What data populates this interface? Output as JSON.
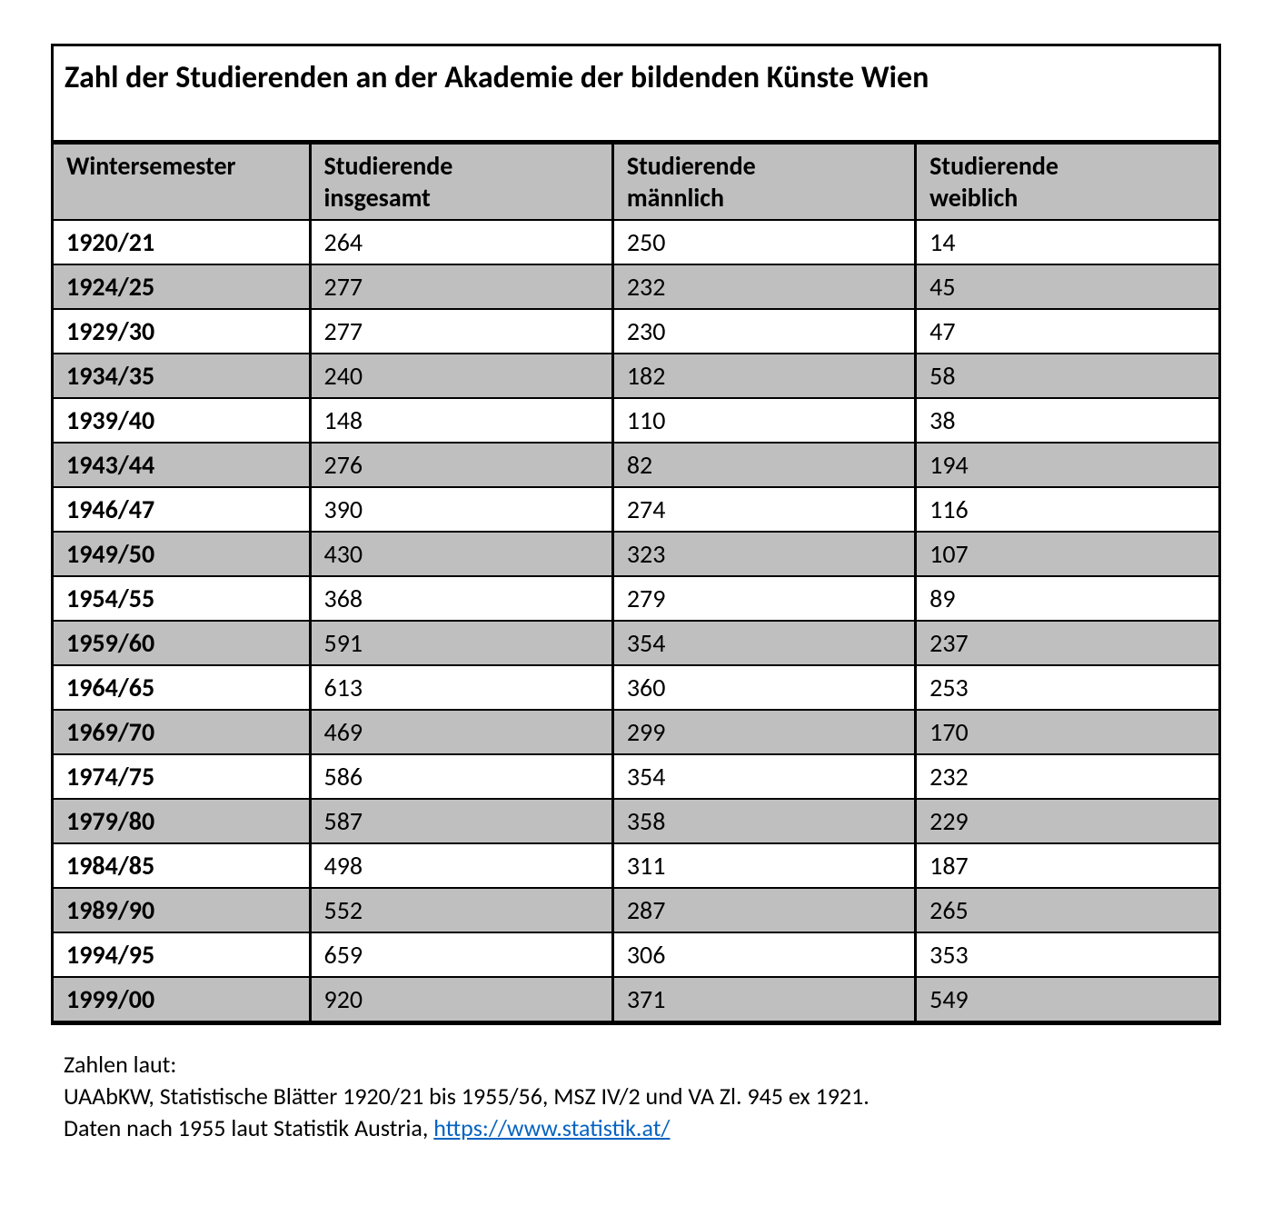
{
  "table": {
    "type": "table",
    "title": "Zahl der Studierenden an der Akademie der bildenden Künste Wien",
    "title_fontsize": 34,
    "body_fontsize": 28,
    "border_color": "#000000",
    "outer_border_width": 3,
    "inner_border_width": 2,
    "column_separator_width": 3,
    "background_color": "#ffffff",
    "stripe_color": "#bfbfbf",
    "header_bg": "#bfbfbf",
    "text_color": "#000000",
    "font_family": "Calibri",
    "col_widths_pct": [
      22,
      26,
      26,
      26
    ],
    "columns": [
      {
        "line1": "Wintersemester",
        "line2": ""
      },
      {
        "line1": "Studierende",
        "line2": "insgesamt"
      },
      {
        "line1": "Studierende",
        "line2": "männlich"
      },
      {
        "line1": "Studierende",
        "line2": "weiblich"
      }
    ],
    "rows": [
      [
        "1920/21",
        "264",
        "250",
        "14"
      ],
      [
        "1924/25",
        "277",
        "232",
        "45"
      ],
      [
        "1929/30",
        "277",
        "230",
        "47"
      ],
      [
        "1934/35",
        "240",
        "182",
        "58"
      ],
      [
        "1939/40",
        "148",
        "110",
        "38"
      ],
      [
        "1943/44",
        "276",
        "82",
        "194"
      ],
      [
        "1946/47",
        "390",
        "274",
        "116"
      ],
      [
        "1949/50",
        "430",
        "323",
        "107"
      ],
      [
        "1954/55",
        "368",
        "279",
        "89"
      ],
      [
        "1959/60",
        "591",
        "354",
        "237"
      ],
      [
        "1964/65",
        "613",
        "360",
        "253"
      ],
      [
        "1969/70",
        "469",
        "299",
        "170"
      ],
      [
        "1974/75",
        "586",
        "354",
        "232"
      ],
      [
        "1979/80",
        "587",
        "358",
        "229"
      ],
      [
        "1984/85",
        "498",
        "311",
        "187"
      ],
      [
        "1989/90",
        "552",
        "287",
        "265"
      ],
      [
        "1994/95",
        "659",
        "306",
        "353"
      ],
      [
        "1999/00",
        "920",
        "371",
        "549"
      ]
    ]
  },
  "footnote": {
    "fontsize": 26,
    "text_color": "#000000",
    "link_color": "#0563c1",
    "line1": "Zahlen laut:",
    "line2": "UAAbKW, Statistische Blätter 1920/21 bis 1955/56, MSZ IV/2 und VA Zl. 945 ex 1921.",
    "line3_prefix": "Daten nach 1955 laut Statistik Austria, ",
    "link_text": "https://www.statistik.at/",
    "link_href": "https://www.statistik.at/"
  }
}
